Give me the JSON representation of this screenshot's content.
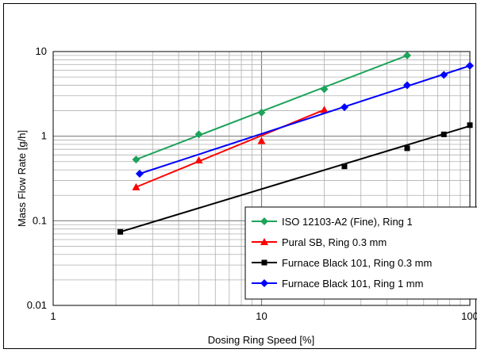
{
  "chart_data": {
    "type": "line",
    "xlabel": "Dosing Ring Speed [%]",
    "ylabel": "Mass Flow Rate [g/h]",
    "xscale": "log",
    "yscale": "log",
    "xlim": [
      1,
      100
    ],
    "ylim": [
      0.01,
      10
    ],
    "x_ticks": [
      "1",
      "10",
      "100"
    ],
    "y_ticks": [
      "0.01",
      "0.1",
      "1",
      "10"
    ],
    "grid": true,
    "legend_position": "bottom-right",
    "series": [
      {
        "name": "ISO 12103-A2 (Fine), Ring 1",
        "color": "#1ea35a",
        "marker": "diamond",
        "points": [
          [
            2.5,
            0.53
          ],
          [
            5,
            1.05
          ],
          [
            10,
            1.9
          ],
          [
            20,
            3.6
          ],
          [
            50,
            9.0
          ]
        ],
        "fit": [
          [
            2.5,
            0.53
          ],
          [
            50,
            9.0
          ]
        ]
      },
      {
        "name": "Pural SB, Ring 0.3 mm",
        "color": "#ff0000",
        "marker": "triangle",
        "points": [
          [
            2.5,
            0.25
          ],
          [
            5,
            0.52
          ],
          [
            10,
            0.88
          ],
          [
            20,
            2.05
          ]
        ],
        "fit": [
          [
            2.5,
            0.25
          ],
          [
            20,
            2.05
          ]
        ]
      },
      {
        "name": "Furnace Black 101, Ring 0.3 mm",
        "color": "#000000",
        "marker": "square",
        "points": [
          [
            2.1,
            0.074
          ],
          [
            25,
            0.44
          ],
          [
            50,
            0.72
          ],
          [
            75,
            1.05
          ],
          [
            100,
            1.35
          ]
        ],
        "fit": [
          [
            2.1,
            0.074
          ],
          [
            100,
            1.32
          ]
        ]
      },
      {
        "name": "Furnace Black 101, Ring 1 mm",
        "color": "#0000ff",
        "marker": "diamond",
        "points": [
          [
            2.6,
            0.36
          ],
          [
            25,
            2.2
          ],
          [
            50,
            4.0
          ],
          [
            75,
            5.3
          ],
          [
            100,
            6.8
          ]
        ],
        "fit": [
          [
            2.6,
            0.36
          ],
          [
            100,
            6.8
          ]
        ]
      }
    ]
  }
}
